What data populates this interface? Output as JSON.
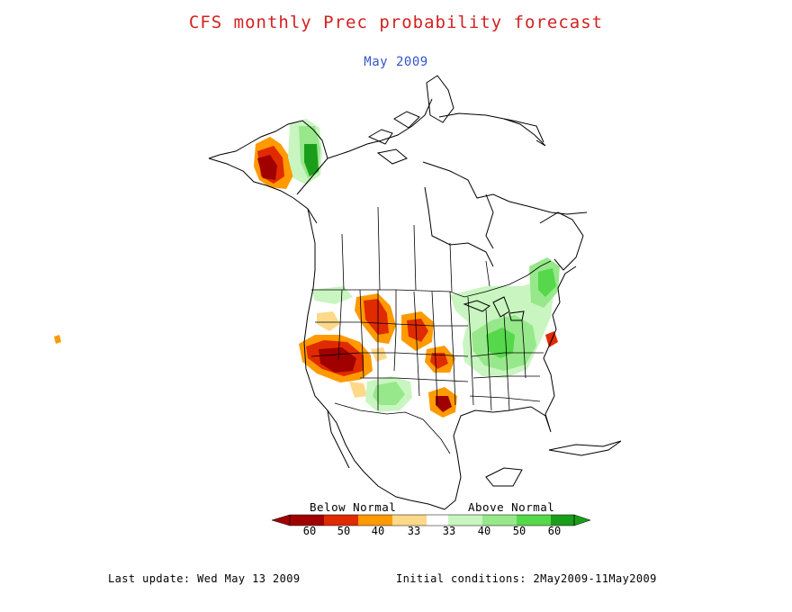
{
  "title": "CFS monthly Prec probability forecast",
  "subtitle": "May 2009",
  "colors": {
    "title": "#d42020",
    "subtitle": "#3355cc",
    "below": [
      "#a00000",
      "#e02a00",
      "#ff9a00",
      "#ffd98a"
    ],
    "above": [
      "#c8f5c0",
      "#96e88a",
      "#55d84a",
      "#1a9e1a"
    ]
  },
  "legend": {
    "below_label": "Below Normal",
    "above_label": "Above Normal",
    "below_ticks": [
      "60",
      "50",
      "40",
      "33"
    ],
    "above_ticks": [
      "33",
      "40",
      "50",
      "60"
    ]
  },
  "footer": {
    "last_update": "Last update: Wed May 13 2009",
    "initial_conditions": "Initial conditions: 2May2009-11May2009"
  }
}
